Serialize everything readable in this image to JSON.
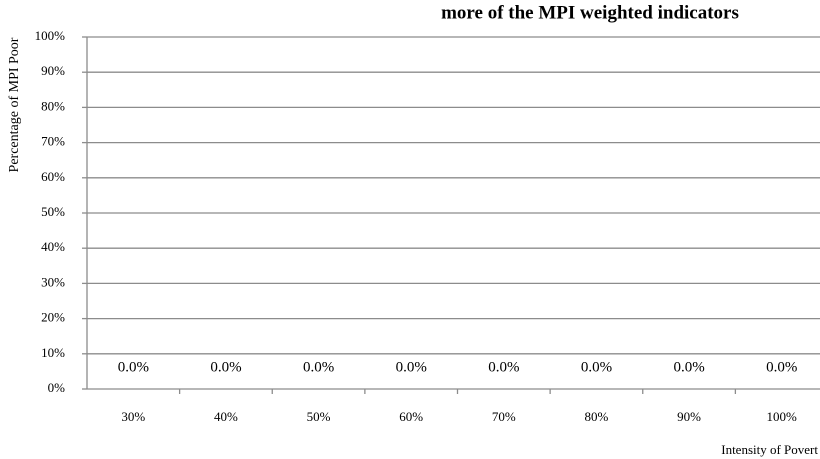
{
  "chart_data": {
    "type": "bar",
    "title": "more of the MPI weighted indicators",
    "y_label": "Percentage of MPI Poor",
    "x_label": "Intensity of Povert",
    "categories": [
      "30%",
      "40%",
      "50%",
      "60%",
      "70%",
      "80%",
      "90%",
      "100%"
    ],
    "values": [
      0,
      0,
      0,
      0,
      0,
      0,
      0,
      0
    ],
    "value_labels": [
      "0.0%",
      "0.0%",
      "0.0%",
      "0.0%",
      "0.0%",
      "0.0%",
      "0.0%",
      "0.0%"
    ],
    "color": "#4f81bd",
    "ylim": [
      0,
      100
    ],
    "yticks": [
      {
        "value": 0,
        "label": "0%"
      },
      {
        "value": 10,
        "label": "10%"
      },
      {
        "value": 20,
        "label": "20%"
      },
      {
        "value": 30,
        "label": "30%"
      },
      {
        "value": 40,
        "label": "40%"
      },
      {
        "value": 50,
        "label": "50%"
      },
      {
        "value": 60,
        "label": "60%"
      },
      {
        "value": 70,
        "label": "70%"
      },
      {
        "value": 80,
        "label": "80%"
      },
      {
        "value": 90,
        "label": "90%"
      },
      {
        "value": 100,
        "label": "100%"
      }
    ],
    "grid": true
  }
}
